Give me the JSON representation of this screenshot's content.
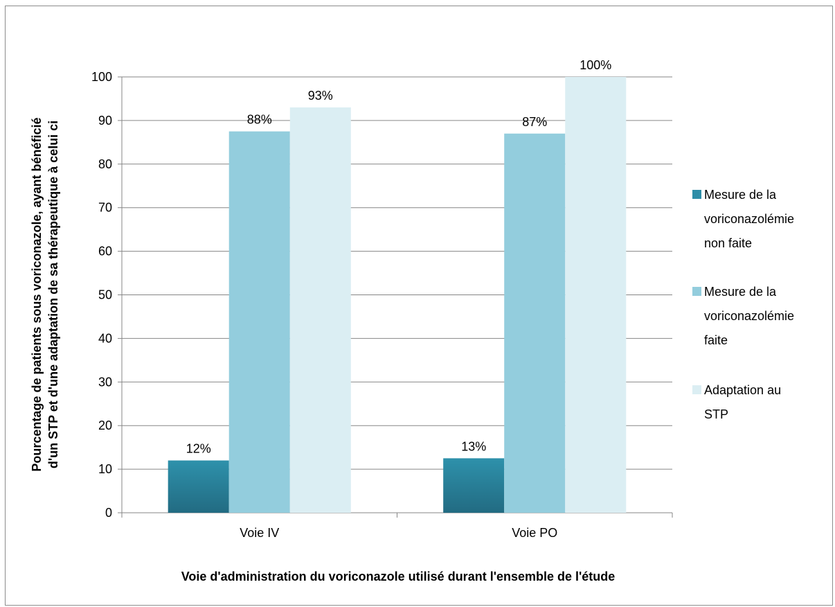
{
  "chart_data": {
    "type": "bar",
    "categories": [
      "Voie IV",
      "Voie PO"
    ],
    "series": [
      {
        "name": "Mesure de la voriconazolémie non faite",
        "values": [
          12,
          12.5
        ],
        "labels": [
          "12%",
          "13%"
        ],
        "color": "#2e8ea8"
      },
      {
        "name": "Mesure de la voriconazolémie faite",
        "values": [
          87.5,
          87
        ],
        "labels": [
          "88%",
          "87%"
        ],
        "color": "#93cddd"
      },
      {
        "name": "Adaptation au STP",
        "values": [
          93,
          100
        ],
        "labels": [
          "93%",
          "100%"
        ],
        "color": "#dbeef3"
      }
    ],
    "legend_lines": [
      [
        "Mesure de la",
        "voriconazolémie",
        "non faite"
      ],
      [
        "Mesure de la",
        "voriconazolémie",
        "faite"
      ],
      [
        "Adaptation au",
        "STP"
      ]
    ],
    "xlabel": "Voie d'administration du voriconazole utilisé durant l'ensemble de l'étude",
    "ylabel_lines": [
      "Pourcentage de patients sous voriconazole, ayant bénéficié",
      "d'un STP et d'une adaptation  de sa thérapeutique à celui ci"
    ],
    "ylim": [
      0,
      100
    ],
    "yticks": [
      0,
      10,
      20,
      30,
      40,
      50,
      60,
      70,
      80,
      90,
      100
    ],
    "grid": true,
    "legend_position": "right"
  }
}
